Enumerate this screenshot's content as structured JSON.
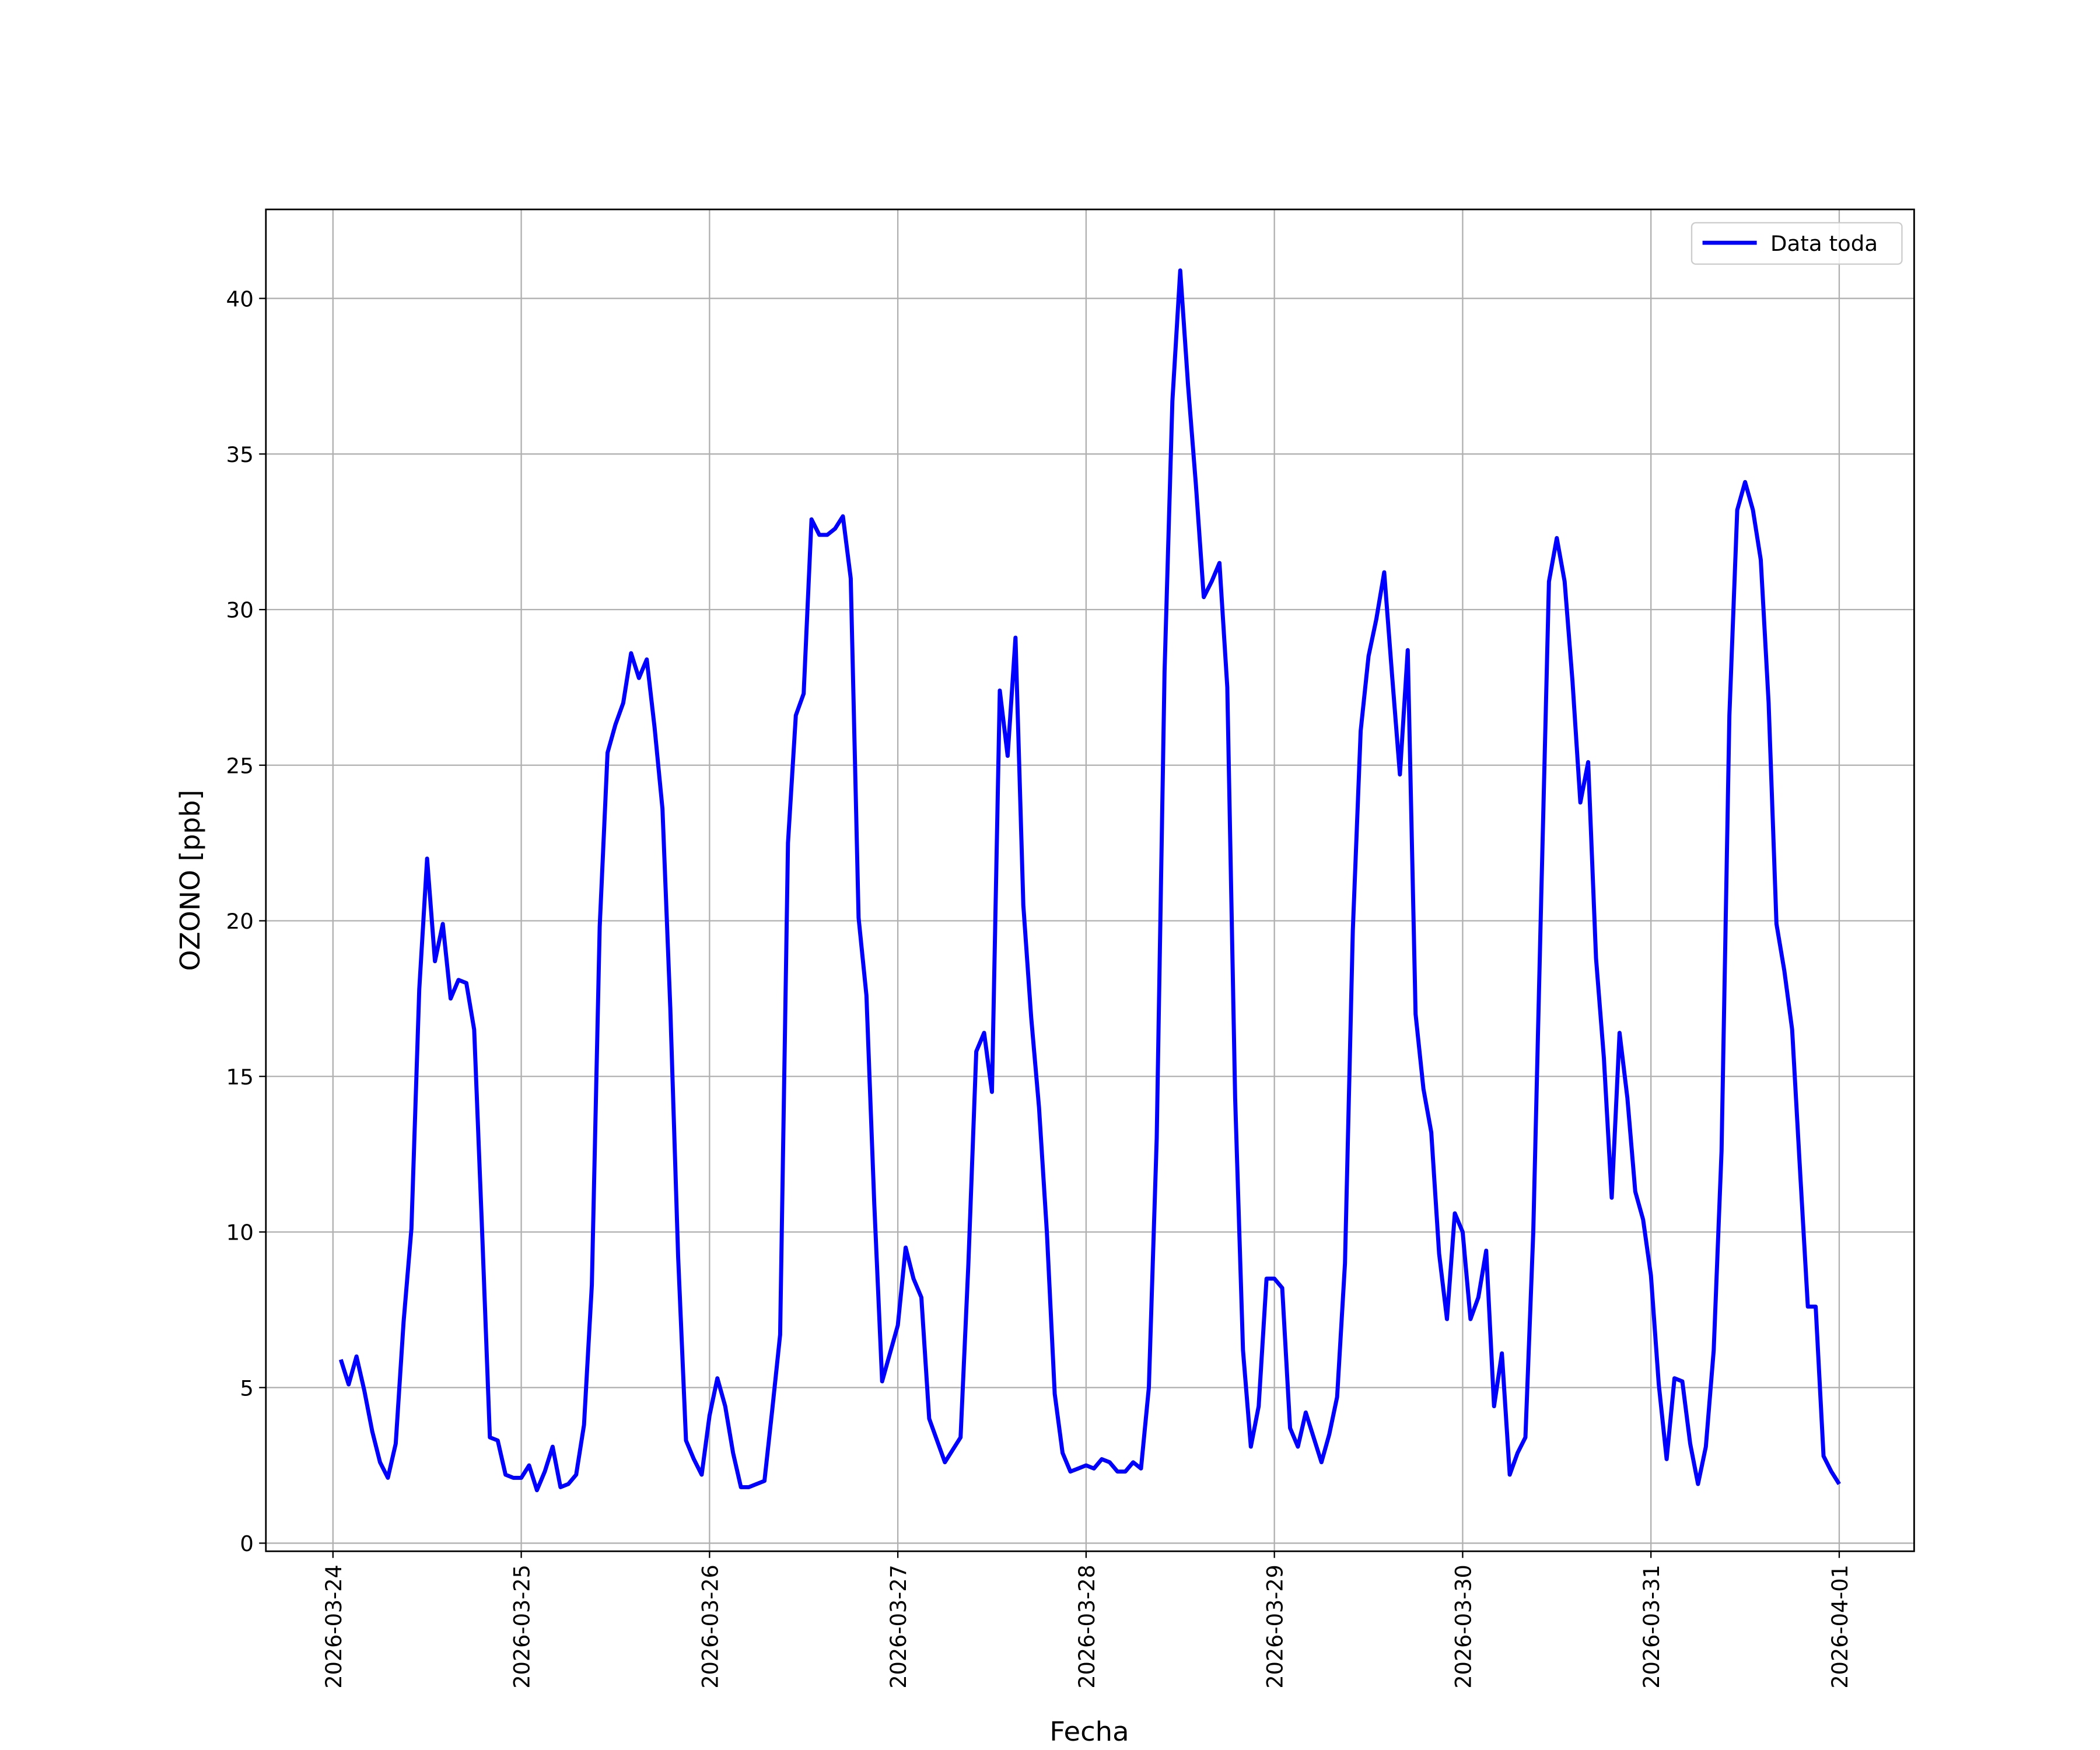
{
  "chart_data": {
    "type": "line",
    "xlabel": "Fecha",
    "ylabel": "OZONO [ppb]",
    "x": [
      "2026-03-24 01:00",
      "2026-03-24 02:00",
      "2026-03-24 03:00",
      "2026-03-24 04:00",
      "2026-03-24 05:00",
      "2026-03-24 06:00",
      "2026-03-24 07:00",
      "2026-03-24 08:00",
      "2026-03-24 09:00",
      "2026-03-24 10:00",
      "2026-03-24 11:00",
      "2026-03-24 12:00",
      "2026-03-24 13:00",
      "2026-03-24 14:00",
      "2026-03-24 15:00",
      "2026-03-24 16:00",
      "2026-03-24 17:00",
      "2026-03-24 18:00",
      "2026-03-24 19:00",
      "2026-03-24 20:00",
      "2026-03-24 21:00",
      "2026-03-24 22:00",
      "2026-03-24 23:00",
      "2026-03-25 00:00",
      "2026-03-25 01:00",
      "2026-03-25 02:00",
      "2026-03-25 03:00",
      "2026-03-25 04:00",
      "2026-03-25 05:00",
      "2026-03-25 06:00",
      "2026-03-25 07:00",
      "2026-03-25 08:00",
      "2026-03-25 09:00",
      "2026-03-25 10:00",
      "2026-03-25 11:00",
      "2026-03-25 12:00",
      "2026-03-25 13:00",
      "2026-03-25 14:00",
      "2026-03-25 15:00",
      "2026-03-25 16:00",
      "2026-03-25 17:00",
      "2026-03-25 18:00",
      "2026-03-25 19:00",
      "2026-03-25 20:00",
      "2026-03-25 21:00",
      "2026-03-25 22:00",
      "2026-03-25 23:00",
      "2026-03-26 00:00",
      "2026-03-26 01:00",
      "2026-03-26 02:00",
      "2026-03-26 03:00",
      "2026-03-26 04:00",
      "2026-03-26 05:00",
      "2026-03-26 06:00",
      "2026-03-26 07:00",
      "2026-03-26 08:00",
      "2026-03-26 09:00",
      "2026-03-26 10:00",
      "2026-03-26 11:00",
      "2026-03-26 12:00",
      "2026-03-26 13:00",
      "2026-03-26 14:00",
      "2026-03-26 15:00",
      "2026-03-26 16:00",
      "2026-03-26 17:00",
      "2026-03-26 18:00",
      "2026-03-26 19:00",
      "2026-03-26 20:00",
      "2026-03-26 21:00",
      "2026-03-26 22:00",
      "2026-03-26 23:00",
      "2026-03-27 00:00",
      "2026-03-27 01:00",
      "2026-03-27 02:00",
      "2026-03-27 03:00",
      "2026-03-27 04:00",
      "2026-03-27 05:00",
      "2026-03-27 06:00",
      "2026-03-27 07:00",
      "2026-03-27 08:00",
      "2026-03-27 09:00",
      "2026-03-27 10:00",
      "2026-03-27 11:00",
      "2026-03-27 12:00",
      "2026-03-27 13:00",
      "2026-03-27 14:00",
      "2026-03-27 15:00",
      "2026-03-27 16:00",
      "2026-03-27 17:00",
      "2026-03-27 18:00",
      "2026-03-27 19:00",
      "2026-03-27 20:00",
      "2026-03-27 21:00",
      "2026-03-27 22:00",
      "2026-03-27 23:00",
      "2026-03-28 00:00",
      "2026-03-28 01:00",
      "2026-03-28 02:00",
      "2026-03-28 03:00",
      "2026-03-28 04:00",
      "2026-03-28 05:00",
      "2026-03-28 06:00",
      "2026-03-28 07:00",
      "2026-03-28 08:00",
      "2026-03-28 09:00",
      "2026-03-28 10:00",
      "2026-03-28 11:00",
      "2026-03-28 12:00",
      "2026-03-28 13:00",
      "2026-03-28 14:00",
      "2026-03-28 15:00",
      "2026-03-28 16:00",
      "2026-03-28 17:00",
      "2026-03-28 18:00",
      "2026-03-28 19:00",
      "2026-03-28 20:00",
      "2026-03-28 21:00",
      "2026-03-28 22:00",
      "2026-03-28 23:00",
      "2026-03-29 00:00",
      "2026-03-29 01:00",
      "2026-03-29 02:00",
      "2026-03-29 03:00",
      "2026-03-29 04:00",
      "2026-03-29 05:00",
      "2026-03-29 06:00",
      "2026-03-29 07:00",
      "2026-03-29 08:00",
      "2026-03-29 09:00",
      "2026-03-29 10:00",
      "2026-03-29 11:00",
      "2026-03-29 12:00",
      "2026-03-29 13:00",
      "2026-03-29 14:00",
      "2026-03-29 15:00",
      "2026-03-29 16:00",
      "2026-03-29 17:00",
      "2026-03-29 18:00",
      "2026-03-29 19:00",
      "2026-03-29 20:00",
      "2026-03-29 21:00",
      "2026-03-29 22:00",
      "2026-03-29 23:00",
      "2026-03-30 00:00",
      "2026-03-30 01:00",
      "2026-03-30 02:00",
      "2026-03-30 03:00",
      "2026-03-30 04:00",
      "2026-03-30 05:00",
      "2026-03-30 06:00",
      "2026-03-30 07:00",
      "2026-03-30 08:00",
      "2026-03-30 09:00",
      "2026-03-30 10:00",
      "2026-03-30 11:00",
      "2026-03-30 12:00",
      "2026-03-30 13:00",
      "2026-03-30 14:00",
      "2026-03-30 15:00",
      "2026-03-30 16:00",
      "2026-03-30 17:00",
      "2026-03-30 18:00",
      "2026-03-30 19:00",
      "2026-03-30 20:00",
      "2026-03-30 21:00",
      "2026-03-30 22:00",
      "2026-03-30 23:00",
      "2026-03-31 00:00",
      "2026-03-31 01:00",
      "2026-03-31 02:00",
      "2026-03-31 03:00",
      "2026-03-31 04:00",
      "2026-03-31 05:00",
      "2026-03-31 06:00",
      "2026-03-31 07:00",
      "2026-03-31 08:00",
      "2026-03-31 09:00",
      "2026-03-31 10:00",
      "2026-03-31 11:00",
      "2026-03-31 12:00",
      "2026-03-31 13:00",
      "2026-03-31 14:00",
      "2026-03-31 15:00",
      "2026-03-31 16:00",
      "2026-03-31 17:00",
      "2026-03-31 18:00",
      "2026-03-31 19:00",
      "2026-03-31 20:00",
      "2026-03-31 21:00",
      "2026-03-31 22:00",
      "2026-03-31 23:00",
      "2026-04-01 00:00"
    ],
    "series": [
      {
        "name": "Data toda",
        "color": "#0000ff",
        "values": [
          5.9,
          5.1,
          6.0,
          4.9,
          3.6,
          2.6,
          2.1,
          3.2,
          7.1,
          10.1,
          17.8,
          22.0,
          18.7,
          19.9,
          17.5,
          18.1,
          18.0,
          16.5,
          10.1,
          3.4,
          3.3,
          2.2,
          2.1,
          2.1,
          2.5,
          1.7,
          2.3,
          3.1,
          1.8,
          1.9,
          2.2,
          3.8,
          8.3,
          19.8,
          25.4,
          26.3,
          27.0,
          28.6,
          27.8,
          28.4,
          26.2,
          23.6,
          17.2,
          9.2,
          3.3,
          2.7,
          2.2,
          4.1,
          5.3,
          4.4,
          2.9,
          1.8,
          1.8,
          1.9,
          2.0,
          4.3,
          6.7,
          22.5,
          26.6,
          27.3,
          32.9,
          32.4,
          32.4,
          32.6,
          33.0,
          31.0,
          20.1,
          17.6,
          10.9,
          5.2,
          6.1,
          7.0,
          9.5,
          8.5,
          7.9,
          4.0,
          3.3,
          2.6,
          3.0,
          3.4,
          9.0,
          15.8,
          16.4,
          14.5,
          27.4,
          25.3,
          29.1,
          20.5,
          16.9,
          14.0,
          10.0,
          4.8,
          2.9,
          2.3,
          2.4,
          2.5,
          2.4,
          2.7,
          2.6,
          2.3,
          2.3,
          2.6,
          2.4,
          5.0,
          13.0,
          28.0,
          36.7,
          40.9,
          37.2,
          34.0,
          30.4,
          30.9,
          31.5,
          27.5,
          14.3,
          6.2,
          3.1,
          4.4,
          8.5,
          8.5,
          8.2,
          3.7,
          3.1,
          4.2,
          3.4,
          2.6,
          3.5,
          4.7,
          9.0,
          19.7,
          26.1,
          28.5,
          29.7,
          31.2,
          27.9,
          24.7,
          28.7,
          17.0,
          14.6,
          13.2,
          9.3,
          7.2,
          10.6,
          10.0,
          7.2,
          7.9,
          9.4,
          4.4,
          6.1,
          2.2,
          2.9,
          3.4,
          10.0,
          20.6,
          30.9,
          32.3,
          30.9,
          27.7,
          23.8,
          25.1,
          18.8,
          15.6,
          11.1,
          16.4,
          14.3,
          11.3,
          10.4,
          8.6,
          5.1,
          2.7,
          5.3,
          5.2,
          3.2,
          1.9,
          3.1,
          6.2,
          12.6,
          26.6,
          33.2,
          34.1,
          33.2,
          31.6,
          27.0,
          19.9,
          18.4,
          16.5,
          12.0,
          7.6,
          7.6,
          2.8,
          2.3,
          1.9
        ]
      }
    ],
    "xlim": [
      "2026-03-23 15:27",
      "2026-04-01 09:33"
    ],
    "xticks": [
      "2026-03-24",
      "2026-03-25",
      "2026-03-26",
      "2026-03-27",
      "2026-03-28",
      "2026-03-29",
      "2026-03-30",
      "2026-03-31",
      "2026-04-01"
    ],
    "ylim": [
      -0.26,
      42.86
    ],
    "yticks": [
      0,
      5,
      10,
      15,
      20,
      25,
      30,
      35,
      40
    ],
    "grid": true,
    "legend": "upper right"
  }
}
